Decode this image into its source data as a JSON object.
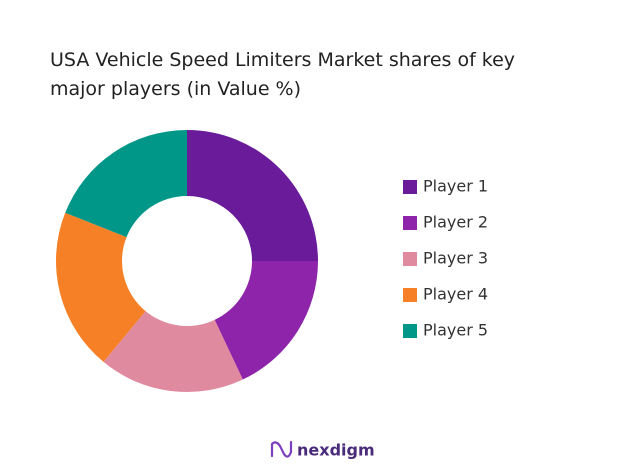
{
  "chart_data": {
    "type": "pie",
    "donut": true,
    "title": "USA Vehicle Speed Limiters Market shares of key major players (in Value %)",
    "categories": [
      "Player 1",
      "Player 2",
      "Player 3",
      "Player 4",
      "Player 5"
    ],
    "values": [
      25,
      18,
      18,
      20,
      19
    ],
    "colors": [
      "#6a1b9a",
      "#8e24aa",
      "#e08aa0",
      "#f58025",
      "#009688"
    ],
    "legend": "right"
  },
  "brand": "nexdigm"
}
